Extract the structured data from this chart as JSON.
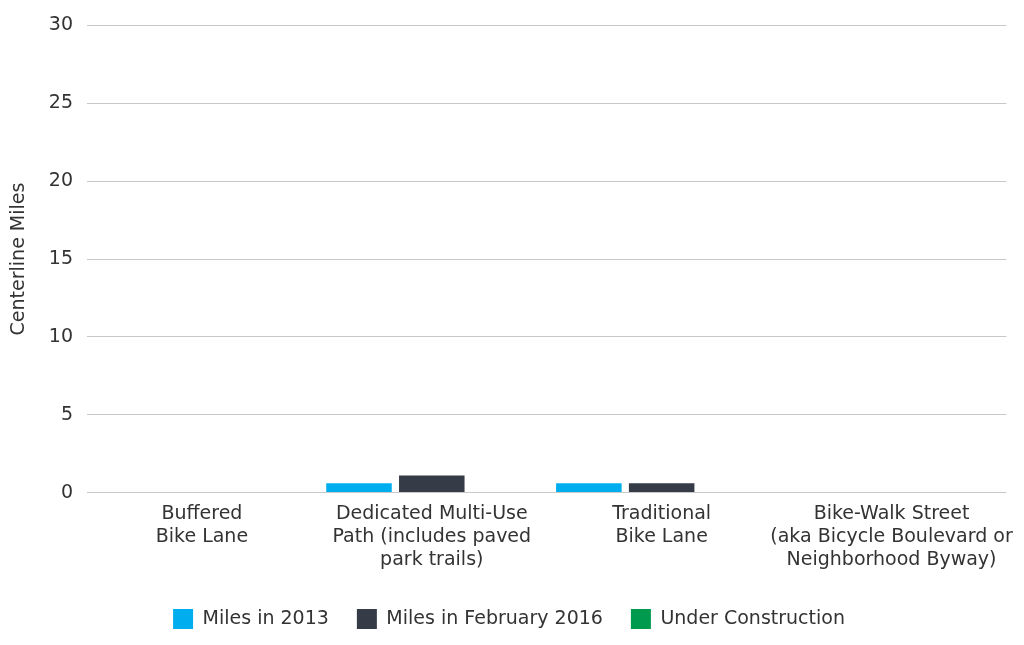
{
  "chart_data": {
    "type": "bar",
    "ylabel": "Centerline Miles",
    "categories": [
      "Buffered\nBike Lane",
      "Dedicated Multi-Use\nPath (includes paved\npark trails)",
      "Traditional\nBike Lane",
      "Bike-Walk Street\n(aka Bicycle Boulevard or\nNeighborhood Byway)"
    ],
    "series": [
      {
        "name": "Miles in 2013",
        "color": "#00aeef",
        "values": [
          0,
          0.6,
          0.6,
          0
        ]
      },
      {
        "name": "Miles in February 2016",
        "color": "#353c47",
        "values": [
          0,
          1.1,
          0.6,
          0
        ]
      },
      {
        "name": "Under Construction",
        "color": "#009a4e",
        "values": [
          0,
          0,
          0,
          0
        ]
      }
    ],
    "ylim": [
      0,
      30
    ],
    "yticks": [
      0,
      5,
      10,
      15,
      20,
      25,
      30
    ],
    "grid": "y",
    "legend": "bottom"
  }
}
